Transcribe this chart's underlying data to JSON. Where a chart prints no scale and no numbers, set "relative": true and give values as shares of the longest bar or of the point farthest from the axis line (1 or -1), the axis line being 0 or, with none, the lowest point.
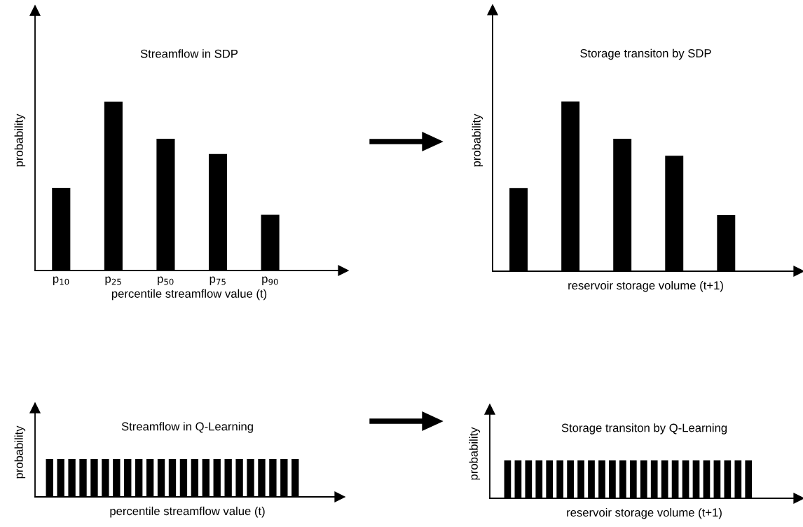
{
  "chart_data": [
    {
      "type": "bar",
      "relative": true,
      "title": "Streamflow in SDP",
      "xlabel": "percentile streamflow value (t)",
      "ylabel": "probability",
      "color": "#000000",
      "categories": [
        "p$_{10}$",
        "p$_{25}$",
        "p$_{50}$",
        "p$_{75}$",
        "p$_{90}$"
      ],
      "values": [
        0.49,
        1,
        0.78,
        0.69,
        0.33
      ]
    },
    {
      "type": "bar",
      "relative": true,
      "title": "Storage transiton by SDP",
      "xlabel": "reservoir storage volume (t+1)",
      "ylabel": "probability",
      "color": "#000000",
      "categories": [
        null,
        null,
        null,
        null,
        null
      ],
      "values": [
        0.49,
        1,
        0.78,
        0.68,
        0.33
      ]
    },
    {
      "type": "bar",
      "relative": true,
      "title": "Streamflow in Q-Learning",
      "xlabel": "percentile streamflow value (t)",
      "ylabel": "probability",
      "color": "#000000",
      "categories": [
        null,
        null,
        null,
        null,
        null,
        null,
        null,
        null,
        null,
        null,
        null,
        null,
        null,
        null,
        null,
        null,
        null,
        null,
        null,
        null,
        null,
        null,
        null
      ],
      "values": [
        1,
        1,
        1,
        1,
        1,
        1,
        1,
        1,
        1,
        1,
        1,
        1,
        1,
        1,
        1,
        1,
        1,
        1,
        1,
        1,
        1,
        1,
        1
      ]
    },
    {
      "type": "bar",
      "relative": true,
      "title": "Storage transiton by Q-Learning",
      "xlabel": "reservoir storage volume (t+1)",
      "ylabel": "probability",
      "color": "#000000",
      "categories": [
        null,
        null,
        null,
        null,
        null,
        null,
        null,
        null,
        null,
        null,
        null,
        null,
        null,
        null,
        null,
        null,
        null,
        null,
        null,
        null,
        null,
        null,
        null,
        null
      ],
      "values": [
        1,
        1,
        1,
        1,
        1,
        1,
        1,
        1,
        1,
        1,
        1,
        1,
        1,
        1,
        1,
        1,
        1,
        1,
        1,
        1,
        1,
        1,
        1,
        1
      ]
    }
  ]
}
